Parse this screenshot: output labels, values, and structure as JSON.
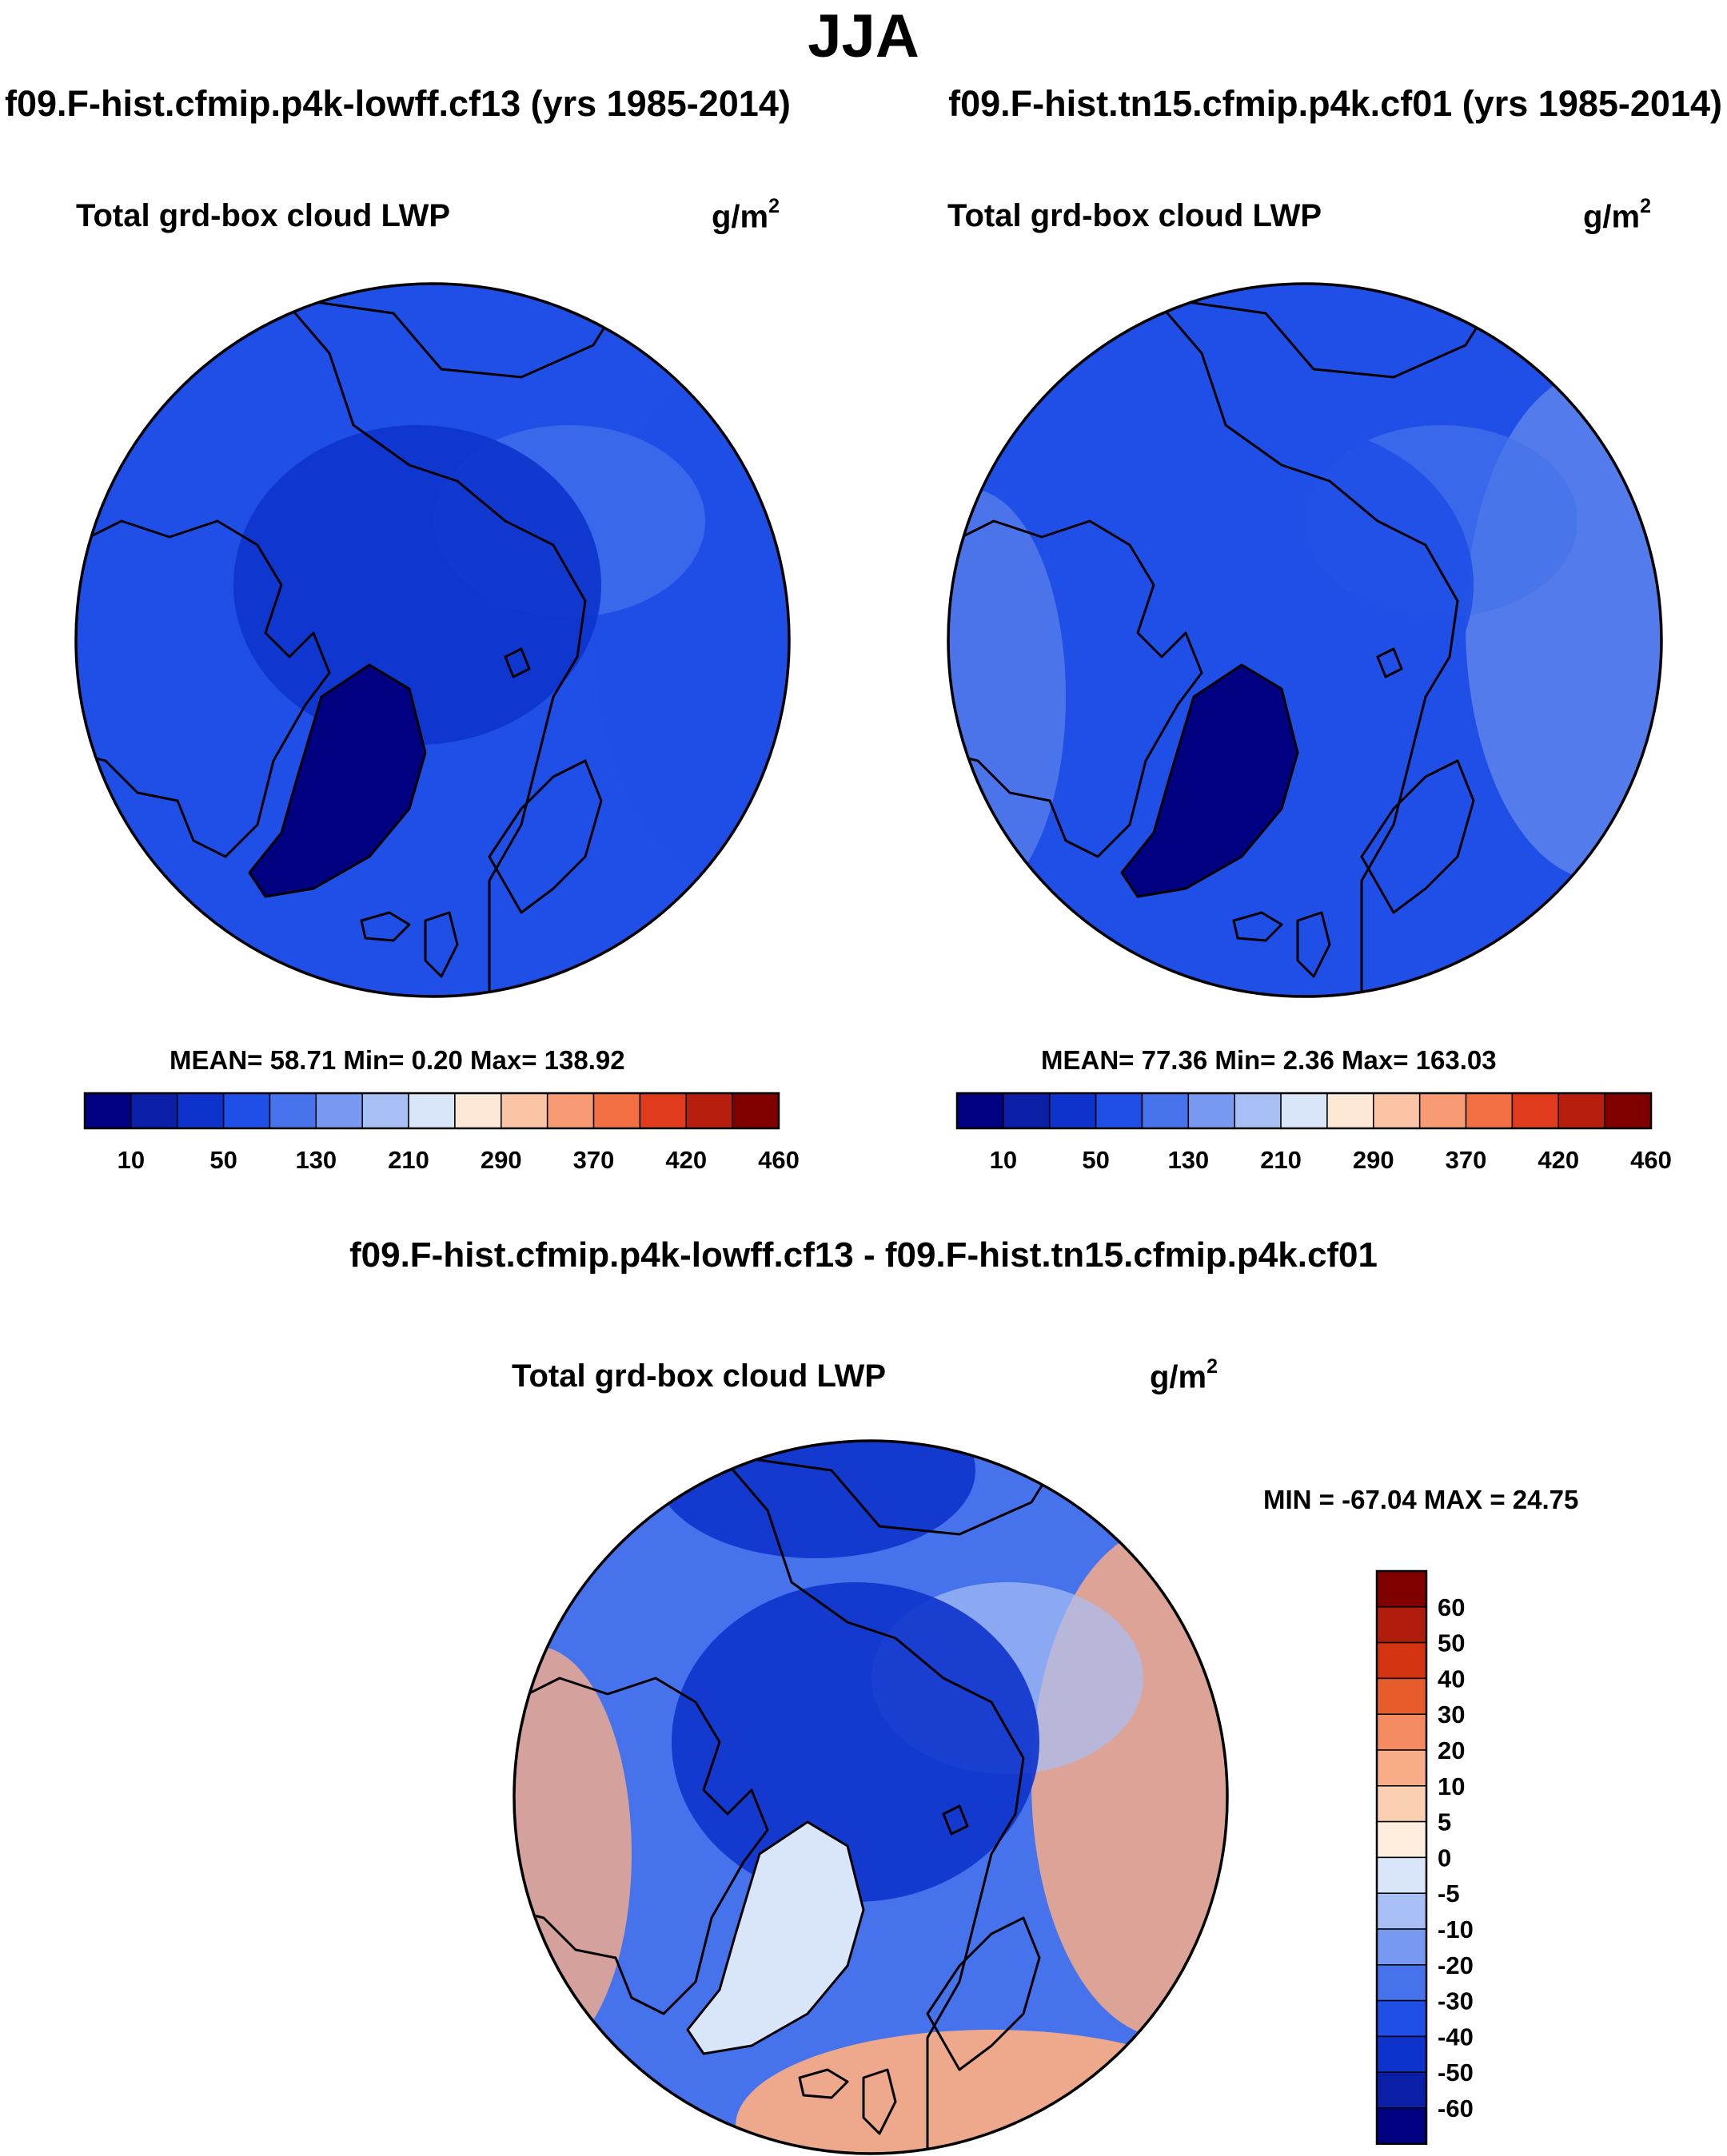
{
  "header": {
    "season": "JJA",
    "run_a": "f09.F-hist.cfmip.p4k-lowff.cf13 (yrs 1985-2014)",
    "run_b": "f09.F-hist.tn15.cfmip.p4k.cf01 (yrs 1985-2014)"
  },
  "panels": [
    {
      "title": "Total grd-box cloud LWP",
      "units": "g/m",
      "units_sup": "2",
      "stats": "MEAN=  58.71  Min=    0.20  Max= 138.92"
    },
    {
      "title": "Total grd-box cloud LWP",
      "units": "g/m",
      "units_sup": "2",
      "stats": "MEAN=  77.36  Min=    2.36  Max= 163.03"
    }
  ],
  "difference": {
    "title": "f09.F-hist.cfmip.p4k-lowff.cf13 - f09.F-hist.tn15.cfmip.p4k.cf01",
    "panel_title": "Total grd-box cloud LWP",
    "units": "g/m",
    "units_sup": "2",
    "stats": "MIN = -67.04 MAX =  24.75"
  },
  "colorbar_abs": {
    "colors": [
      "#000080",
      "#0a1ea6",
      "#0d33cc",
      "#1f4fe6",
      "#4673eb",
      "#7799f0",
      "#a8bff5",
      "#d9e6fa",
      "#fde8d6",
      "#fbc4a5",
      "#f79b74",
      "#f26f44",
      "#e03b1c",
      "#b81e0e",
      "#800000"
    ],
    "labels": [
      "10",
      "50",
      "130",
      "210",
      "290",
      "370",
      "420",
      "460"
    ]
  },
  "colorbar_diff": {
    "colors": [
      "#000080",
      "#0a1ea6",
      "#0d33cc",
      "#1f4fe6",
      "#4673eb",
      "#7799f0",
      "#a8bff5",
      "#d9e6fa",
      "#fdeedd",
      "#fbcfb2",
      "#f8ac88",
      "#f48a5f",
      "#e85c2b",
      "#d43312",
      "#b01c0b",
      "#800000"
    ],
    "labels": [
      "60",
      "50",
      "40",
      "30",
      "20",
      "10",
      "5",
      "0",
      "-5",
      "-10",
      "-20",
      "-30",
      "-40",
      "-50",
      "-60"
    ]
  },
  "map_fields": {
    "map_a": {
      "base": "#1f4fe6",
      "polar": "#0d33cc",
      "greenland": "#000080",
      "patch": "#4673eb",
      "warm": "#1f4fe6"
    },
    "map_b": {
      "base": "#1f4fe6",
      "polar": "#1f4fe6",
      "greenland": "#000080",
      "patch": "#4673eb",
      "warm": "#7799f0"
    },
    "map_c": {
      "base": "#4673eb",
      "polar": "#0d33cc",
      "greenland": "#d9e6fa",
      "patch": "#a8bff5",
      "warm": "#f8ac88"
    }
  }
}
